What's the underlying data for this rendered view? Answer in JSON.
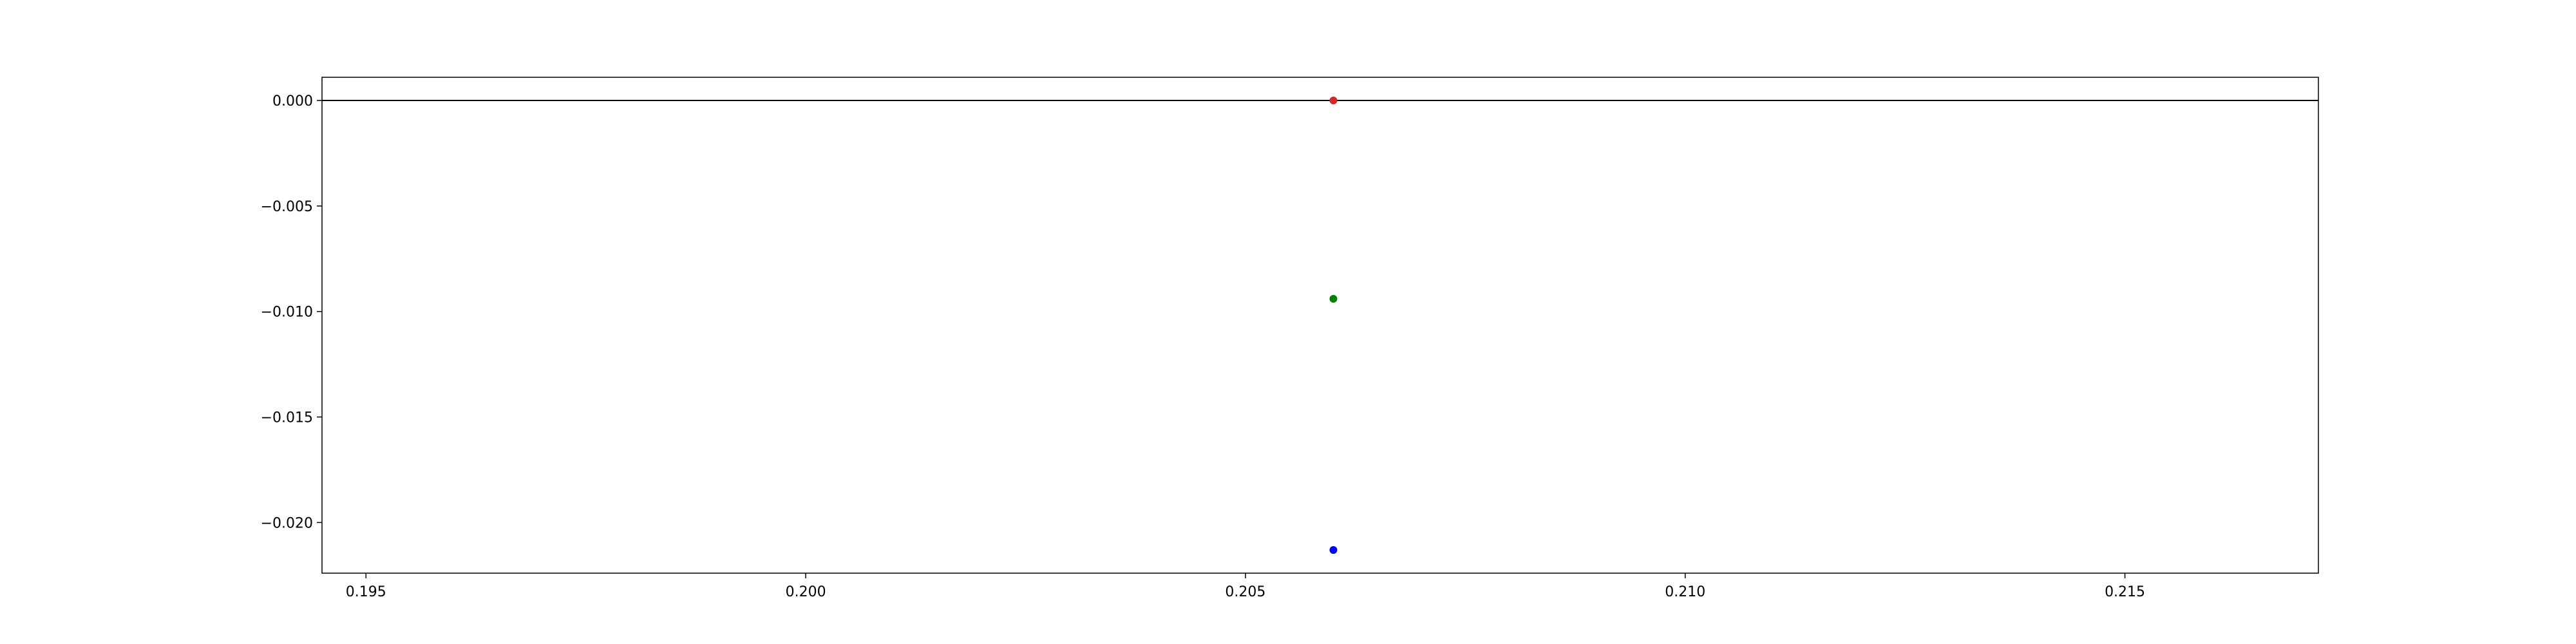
{
  "chart_data": {
    "type": "scatter",
    "title": "",
    "xlabel": "",
    "ylabel": "",
    "xlim": [
      0.1945,
      0.2172
    ],
    "ylim": [
      -0.0224,
      0.0011
    ],
    "grid": false,
    "x_ticks": [
      0.195,
      0.2,
      0.205,
      0.21,
      0.215
    ],
    "x_tick_labels": [
      "0.195",
      "0.200",
      "0.205",
      "0.210",
      "0.215"
    ],
    "y_ticks": [
      0.0,
      -0.005,
      -0.01,
      -0.015,
      -0.02
    ],
    "y_tick_labels": [
      "0.000",
      "−0.005",
      "−0.010",
      "−0.015",
      "−0.020"
    ],
    "hline": {
      "y": 0.0,
      "color": "#000000"
    },
    "points": [
      {
        "x": 0.206,
        "y": 0.0,
        "color": "#d62728"
      },
      {
        "x": 0.206,
        "y": -0.0094,
        "color": "#008000"
      },
      {
        "x": 0.206,
        "y": -0.0213,
        "color": "#0000ff"
      }
    ]
  }
}
